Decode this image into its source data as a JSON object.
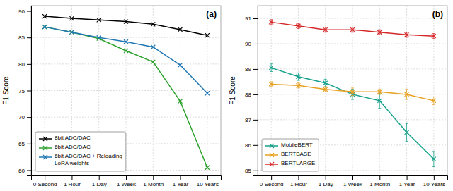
{
  "chart_data": [
    {
      "type": "line",
      "title": "(a)",
      "ylabel": "F1 Score",
      "categories": [
        "0 Second",
        "1 Hour",
        "1 Day",
        "1 Week",
        "1 Month",
        "1 Year",
        "10 Years"
      ],
      "ylim": [
        59,
        91
      ],
      "yticks": [
        60,
        65,
        70,
        75,
        80,
        85,
        90
      ],
      "grid": true,
      "legend": "lower left",
      "series": [
        {
          "name": "8bit ADC/DAC",
          "color": "#000000",
          "marker": "x",
          "values": [
            89.0,
            88.6,
            88.3,
            88.0,
            87.5,
            86.5,
            85.4
          ]
        },
        {
          "name": "6bit ADC/DAC",
          "color": "#2ca02c",
          "marker": "x",
          "values": [
            87.0,
            86.0,
            84.8,
            82.5,
            80.4,
            73.0,
            60.5
          ]
        },
        {
          "name": "6bit ADC/DAC + Reloading\nLoRA weights",
          "color": "#1f77b4",
          "marker": "x",
          "values": [
            87.0,
            86.0,
            85.0,
            84.2,
            83.2,
            79.8,
            74.5
          ]
        }
      ]
    },
    {
      "type": "line",
      "title": "(b)",
      "ylabel": "F1 Score",
      "categories": [
        "0 Second",
        "1 Hour",
        "1 Day",
        "1 Week",
        "1 Month",
        "1 Year",
        "10 Years"
      ],
      "ylim": [
        84.8,
        91.5
      ],
      "yticks": [
        85,
        86,
        87,
        88,
        89,
        90,
        91
      ],
      "grid": true,
      "legend": "lower left",
      "series": [
        {
          "name": "MobileBERT",
          "color": "#17a08a",
          "marker": "x",
          "values": [
            89.05,
            88.7,
            88.45,
            88.0,
            87.75,
            86.5,
            85.45
          ],
          "errors": [
            0.15,
            0.15,
            0.15,
            0.2,
            0.3,
            0.35,
            0.3
          ]
        },
        {
          "name": "BERTBASE",
          "color": "#e8a020",
          "marker": "x",
          "values": [
            88.4,
            88.35,
            88.2,
            88.1,
            88.1,
            88.0,
            87.75
          ],
          "errors": [
            0.1,
            0.1,
            0.1,
            0.15,
            0.1,
            0.2,
            0.15
          ]
        },
        {
          "name": "BERTLARGE",
          "color": "#d62728",
          "marker": "x",
          "values": [
            90.85,
            90.7,
            90.55,
            90.55,
            90.45,
            90.35,
            90.3
          ],
          "errors": [
            0.1,
            0.1,
            0.1,
            0.1,
            0.1,
            0.1,
            0.1
          ]
        }
      ]
    }
  ]
}
